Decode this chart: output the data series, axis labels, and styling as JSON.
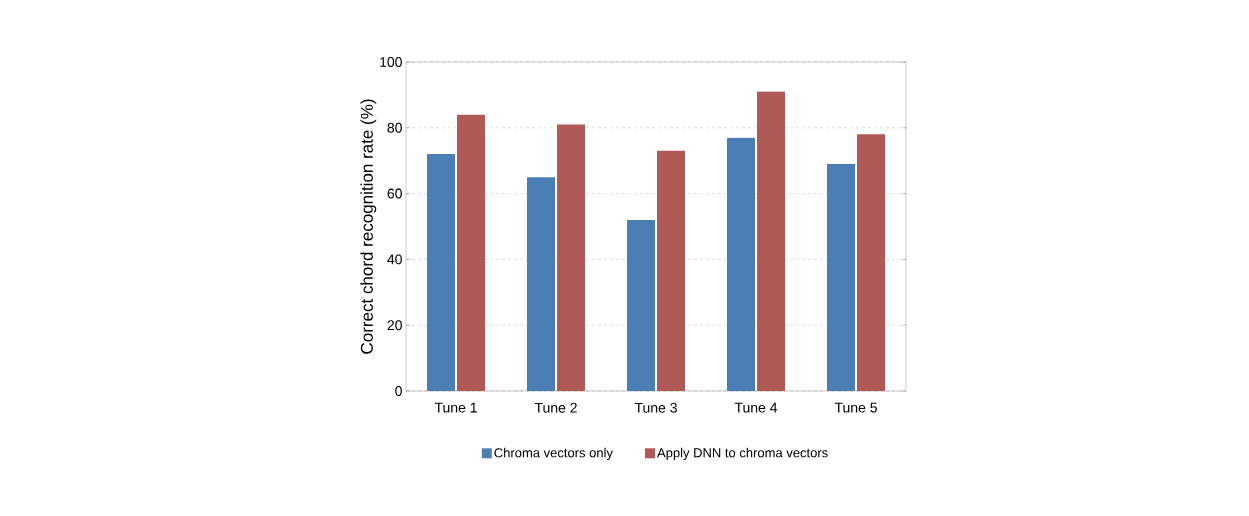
{
  "chart_data": {
    "type": "bar",
    "ylabel": "Correct chord recognition rate (%)",
    "categories": [
      "Tune 1",
      "Tune 2",
      "Tune 3",
      "Tune 4",
      "Tune 5"
    ],
    "series": [
      {
        "name": "Chroma vectors only",
        "color": "#4a7eb4",
        "values": [
          72,
          65,
          52,
          77,
          69
        ]
      },
      {
        "name": "Apply DNN to chroma vectors",
        "color": "#b05a58",
        "values": [
          84,
          81,
          73,
          91,
          78
        ]
      }
    ],
    "ylim": [
      0,
      100
    ],
    "yticks": [
      0,
      20,
      40,
      60,
      80,
      100
    ],
    "grid": "y",
    "legend": "bottom"
  }
}
